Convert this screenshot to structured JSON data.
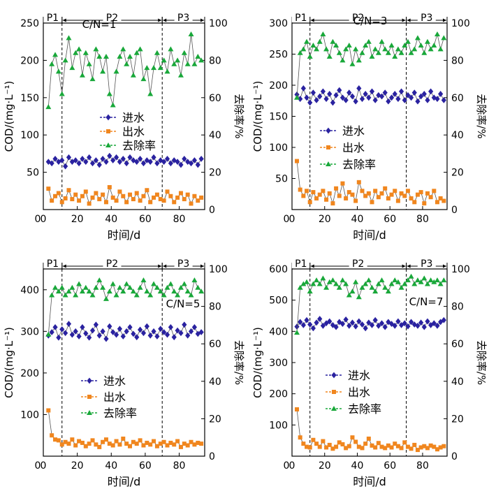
{
  "chart_data": [
    {
      "type": "line",
      "annotation": "C/N=1",
      "xlabel": "时间/d",
      "ylabel": "COD/(mg·L⁻¹)",
      "y2label": "去除率/%",
      "xlim": [
        0,
        95
      ],
      "ylim": [
        0,
        250
      ],
      "y2lim": [
        0,
        100
      ],
      "xticks": [
        0,
        20,
        40,
        60,
        80
      ],
      "yticks": [
        50,
        100,
        150,
        200,
        250
      ],
      "y2ticks": [
        0,
        20,
        40,
        60,
        80,
        100
      ],
      "phases": [
        {
          "label": "P1",
          "start": 0,
          "end": 11
        },
        {
          "label": "P2",
          "start": 11,
          "end": 70
        },
        {
          "label": "P3",
          "start": 70,
          "end": 95
        }
      ],
      "phase_dividers": [
        11,
        70
      ],
      "legend_position": "center",
      "x": [
        3,
        5,
        7,
        9,
        11,
        13,
        15,
        17,
        19,
        21,
        23,
        25,
        27,
        29,
        31,
        33,
        35,
        37,
        39,
        41,
        43,
        45,
        47,
        49,
        51,
        53,
        55,
        57,
        59,
        61,
        63,
        65,
        67,
        69,
        71,
        73,
        75,
        77,
        79,
        81,
        83,
        85,
        87,
        89,
        91,
        93
      ],
      "series": [
        {
          "name": "进水",
          "axis": "left",
          "marker": "diamond",
          "color": "#2a22a0",
          "values": [
            64,
            62,
            68,
            64,
            66,
            58,
            70,
            64,
            66,
            62,
            68,
            64,
            70,
            62,
            66,
            60,
            68,
            64,
            72,
            66,
            70,
            64,
            68,
            62,
            70,
            66,
            64,
            68,
            62,
            66,
            64,
            70,
            62,
            66,
            64,
            68,
            62,
            66,
            64,
            60,
            68,
            64,
            62,
            66,
            60,
            68
          ]
        },
        {
          "name": "出水",
          "axis": "left",
          "marker": "square",
          "color": "#f0861e",
          "values": [
            28,
            12,
            18,
            22,
            10,
            15,
            26,
            14,
            20,
            12,
            18,
            24,
            8,
            16,
            22,
            14,
            20,
            10,
            30,
            16,
            12,
            24,
            18,
            10,
            20,
            14,
            22,
            12,
            18,
            26,
            10,
            16,
            20,
            14,
            12,
            24,
            18,
            10,
            16,
            22,
            14,
            20,
            8,
            18,
            12,
            16
          ]
        },
        {
          "name": "去除率",
          "axis": "right",
          "marker": "triangle",
          "color": "#19a83a",
          "values": [
            55,
            78,
            83,
            74,
            62,
            80,
            92,
            76,
            84,
            86,
            72,
            84,
            78,
            70,
            86,
            82,
            74,
            82,
            62,
            56,
            74,
            82,
            86,
            78,
            82,
            72,
            84,
            86,
            70,
            76,
            62,
            76,
            84,
            76,
            80,
            74,
            86,
            78,
            80,
            72,
            84,
            78,
            94,
            78,
            82,
            80
          ]
        }
      ]
    },
    {
      "type": "line",
      "annotation": "C/N=3",
      "xlabel": "时间/d",
      "ylabel": "COD/(mg·L⁻¹)",
      "y2label": "去除率/%",
      "xlim": [
        0,
        95
      ],
      "ylim": [
        0,
        300
      ],
      "y2lim": [
        0,
        100
      ],
      "xticks": [
        0,
        20,
        40,
        60,
        80
      ],
      "yticks": [
        50,
        100,
        150,
        200,
        250,
        300
      ],
      "y2ticks": [
        0,
        20,
        40,
        60,
        80,
        100
      ],
      "phases": [
        {
          "label": "P1",
          "start": 0,
          "end": 11
        },
        {
          "label": "P2",
          "start": 11,
          "end": 70
        },
        {
          "label": "P3",
          "start": 70,
          "end": 95
        }
      ],
      "phase_dividers": [
        11,
        70
      ],
      "legend_position": "center",
      "x": [
        3,
        5,
        7,
        9,
        11,
        13,
        15,
        17,
        19,
        21,
        23,
        25,
        27,
        29,
        31,
        33,
        35,
        37,
        39,
        41,
        43,
        45,
        47,
        49,
        51,
        53,
        55,
        57,
        59,
        61,
        63,
        65,
        67,
        69,
        71,
        73,
        75,
        77,
        79,
        81,
        83,
        85,
        87,
        89,
        91,
        93
      ],
      "series": [
        {
          "name": "进水",
          "axis": "left",
          "marker": "diamond",
          "color": "#2a22a0",
          "values": [
            185,
            178,
            195,
            180,
            172,
            188,
            176,
            182,
            190,
            178,
            186,
            172,
            184,
            192,
            180,
            176,
            188,
            182,
            174,
            195,
            178,
            186,
            180,
            190,
            176,
            184,
            182,
            188,
            174,
            180,
            186,
            178,
            190,
            176,
            184,
            180,
            188,
            174,
            182,
            186,
            176,
            190,
            180,
            178,
            186,
            176
          ]
        },
        {
          "name": "出水",
          "axis": "left",
          "marker": "square",
          "color": "#f0861e",
          "values": [
            78,
            32,
            22,
            30,
            12,
            28,
            18,
            24,
            30,
            16,
            26,
            10,
            34,
            22,
            42,
            18,
            28,
            24,
            14,
            44,
            30,
            22,
            26,
            12,
            30,
            20,
            26,
            34,
            18,
            24,
            30,
            14,
            26,
            22,
            30,
            18,
            12,
            24,
            28,
            10,
            26,
            20,
            30,
            12,
            18,
            14
          ]
        },
        {
          "name": "去除率",
          "axis": "right",
          "marker": "triangle",
          "color": "#19a83a",
          "values": [
            60,
            84,
            86,
            90,
            82,
            88,
            86,
            90,
            94,
            86,
            82,
            90,
            88,
            84,
            80,
            86,
            88,
            78,
            86,
            80,
            84,
            88,
            90,
            82,
            86,
            84,
            90,
            86,
            84,
            88,
            82,
            86,
            84,
            88,
            90,
            84,
            86,
            92,
            88,
            84,
            90,
            86,
            88,
            94,
            86,
            92
          ]
        }
      ]
    },
    {
      "type": "line",
      "annotation": "C/N=5",
      "xlabel": "时间/d",
      "ylabel": "COD/(mg·L⁻¹)",
      "y2label": "去除率/%",
      "xlim": [
        0,
        95
      ],
      "ylim": [
        0,
        450
      ],
      "y2lim": [
        0,
        100
      ],
      "xticks": [
        0,
        20,
        40,
        60,
        80
      ],
      "yticks": [
        100,
        200,
        300,
        400
      ],
      "y2ticks": [
        0,
        20,
        40,
        60,
        80,
        100
      ],
      "phases": [
        {
          "label": "P1",
          "start": 0,
          "end": 11
        },
        {
          "label": "P2",
          "start": 11,
          "end": 70
        },
        {
          "label": "P3",
          "start": 70,
          "end": 95
        }
      ],
      "phase_dividers": [
        11,
        70
      ],
      "legend_position": "bottom-center",
      "x": [
        3,
        5,
        7,
        9,
        11,
        13,
        15,
        17,
        19,
        21,
        23,
        25,
        27,
        29,
        31,
        33,
        35,
        37,
        39,
        41,
        43,
        45,
        47,
        49,
        51,
        53,
        55,
        57,
        59,
        61,
        63,
        65,
        67,
        69,
        71,
        73,
        75,
        77,
        79,
        81,
        83,
        85,
        87,
        89,
        91,
        93
      ],
      "series": [
        {
          "name": "进水",
          "axis": "left",
          "marker": "diamond",
          "color": "#2a22a0",
          "values": [
            290,
            298,
            310,
            285,
            305,
            296,
            318,
            292,
            300,
            288,
            310,
            295,
            285,
            302,
            316,
            290,
            300,
            282,
            312,
            298,
            292,
            306,
            288,
            300,
            310,
            294,
            286,
            304,
            296,
            312,
            290,
            300,
            288,
            306,
            298,
            292,
            310,
            286,
            302,
            296,
            316,
            290,
            300,
            310,
            294,
            298
          ]
        },
        {
          "name": "出水",
          "axis": "left",
          "marker": "square",
          "color": "#f0861e",
          "values": [
            110,
            50,
            40,
            38,
            28,
            34,
            30,
            40,
            26,
            36,
            32,
            24,
            30,
            38,
            28,
            22,
            34,
            40,
            30,
            26,
            36,
            28,
            42,
            30,
            24,
            34,
            30,
            38,
            26,
            32,
            28,
            36,
            24,
            30,
            34,
            26,
            32,
            28,
            36,
            22,
            30,
            26,
            34,
            28,
            32,
            30
          ]
        },
        {
          "name": "去除率",
          "axis": "right",
          "marker": "triangle",
          "color": "#19a83a",
          "values": [
            65,
            86,
            90,
            88,
            90,
            86,
            88,
            90,
            86,
            92,
            88,
            90,
            88,
            86,
            90,
            94,
            90,
            84,
            88,
            92,
            86,
            90,
            88,
            92,
            90,
            88,
            86,
            90,
            94,
            88,
            86,
            92,
            90,
            88,
            86,
            90,
            92,
            88,
            86,
            90,
            92,
            88,
            86,
            94,
            90,
            88
          ]
        }
      ]
    },
    {
      "type": "line",
      "annotation": "C/N=7",
      "xlabel": "时间/d",
      "ylabel": "COD/(mg·L⁻¹)",
      "y2label": "去除率/%",
      "xlim": [
        0,
        95
      ],
      "ylim": [
        0,
        600
      ],
      "y2lim": [
        0,
        100
      ],
      "xticks": [
        0,
        20,
        40,
        60,
        80
      ],
      "yticks": [
        100,
        200,
        300,
        400,
        500,
        600
      ],
      "y2ticks": [
        0,
        20,
        40,
        60,
        80,
        100
      ],
      "phases": [
        {
          "label": "P1",
          "start": 0,
          "end": 11
        },
        {
          "label": "P2",
          "start": 11,
          "end": 70
        },
        {
          "label": "P3",
          "start": 70,
          "end": 95
        }
      ],
      "phase_dividers": [
        11,
        70
      ],
      "legend_position": "bottom-center",
      "x": [
        3,
        5,
        7,
        9,
        11,
        13,
        15,
        17,
        19,
        21,
        23,
        25,
        27,
        29,
        31,
        33,
        35,
        37,
        39,
        41,
        43,
        45,
        47,
        49,
        51,
        53,
        55,
        57,
        59,
        61,
        63,
        65,
        67,
        69,
        71,
        73,
        75,
        77,
        79,
        81,
        83,
        85,
        87,
        89,
        91,
        93
      ],
      "series": [
        {
          "name": "进水",
          "axis": "left",
          "marker": "diamond",
          "color": "#2a22a0",
          "values": [
            415,
            430,
            420,
            436,
            422,
            410,
            428,
            440,
            418,
            426,
            432,
            420,
            414,
            430,
            424,
            438,
            418,
            428,
            416,
            432,
            422,
            410,
            428,
            420,
            436,
            418,
            426,
            414,
            430,
            424,
            418,
            432,
            420,
            426,
            416,
            430,
            422,
            418,
            428,
            414,
            432,
            420,
            426,
            418,
            430,
            436
          ]
        },
        {
          "name": "出水",
          "axis": "left",
          "marker": "square",
          "color": "#f0861e",
          "values": [
            150,
            60,
            40,
            30,
            28,
            52,
            40,
            30,
            48,
            28,
            36,
            24,
            30,
            44,
            38,
            26,
            32,
            60,
            46,
            30,
            26,
            40,
            56,
            34,
            28,
            42,
            30,
            26,
            34,
            28,
            40,
            32,
            26,
            44,
            30,
            24,
            36,
            20,
            28,
            32,
            26,
            34,
            30,
            22,
            28,
            32
          ]
        },
        {
          "name": "去除率",
          "axis": "right",
          "marker": "triangle",
          "color": "#19a83a",
          "values": [
            66,
            90,
            92,
            93,
            88,
            92,
            94,
            92,
            95,
            90,
            93,
            94,
            92,
            90,
            94,
            92,
            86,
            88,
            93,
            85,
            90,
            92,
            94,
            90,
            88,
            92,
            94,
            90,
            88,
            92,
            94,
            93,
            90,
            92,
            94,
            96,
            92,
            94,
            93,
            95,
            92,
            94,
            93,
            94,
            92,
            94
          ]
        }
      ]
    }
  ]
}
